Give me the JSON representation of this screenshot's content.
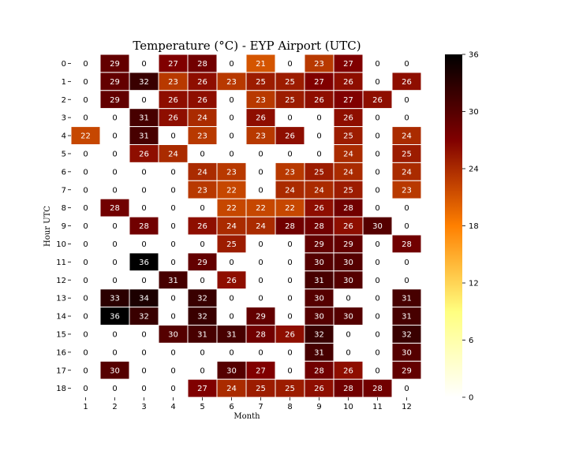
{
  "chart_data": {
    "type": "heatmap",
    "title": "Temperature (°C) - EYP Airport (UTC)",
    "xlabel": "Month",
    "ylabel": "Hour UTC",
    "x_categories": [
      "1",
      "2",
      "3",
      "4",
      "5",
      "6",
      "7",
      "8",
      "9",
      "10",
      "11",
      "12"
    ],
    "y_categories": [
      "0",
      "1",
      "2",
      "3",
      "4",
      "5",
      "6",
      "7",
      "8",
      "9",
      "10",
      "11",
      "12",
      "13",
      "14",
      "15",
      "16",
      "17",
      "18"
    ],
    "values": [
      [
        0,
        29,
        0,
        27,
        28,
        0,
        21,
        0,
        23,
        27,
        0,
        0
      ],
      [
        0,
        29,
        32,
        23,
        26,
        23,
        25,
        25,
        27,
        26,
        0,
        26
      ],
      [
        0,
        29,
        0,
        26,
        26,
        0,
        23,
        25,
        26,
        27,
        26,
        0
      ],
      [
        0,
        0,
        31,
        26,
        24,
        0,
        26,
        0,
        0,
        26,
        0,
        0
      ],
      [
        22,
        0,
        31,
        0,
        23,
        0,
        23,
        26,
        0,
        25,
        0,
        24
      ],
      [
        0,
        0,
        26,
        24,
        0,
        0,
        0,
        0,
        0,
        24,
        0,
        25
      ],
      [
        0,
        0,
        0,
        0,
        24,
        23,
        0,
        23,
        25,
        24,
        0,
        24
      ],
      [
        0,
        0,
        0,
        0,
        23,
        22,
        0,
        24,
        24,
        25,
        0,
        23
      ],
      [
        0,
        28,
        0,
        0,
        0,
        22,
        22,
        22,
        26,
        28,
        0,
        0
      ],
      [
        0,
        0,
        28,
        0,
        26,
        24,
        24,
        28,
        28,
        26,
        30,
        0
      ],
      [
        0,
        0,
        0,
        0,
        0,
        25,
        0,
        0,
        29,
        29,
        0,
        28
      ],
      [
        0,
        0,
        36,
        0,
        29,
        0,
        0,
        0,
        30,
        30,
        0,
        0
      ],
      [
        0,
        0,
        0,
        31,
        0,
        26,
        0,
        0,
        31,
        30,
        0,
        0
      ],
      [
        0,
        33,
        34,
        0,
        32,
        0,
        0,
        0,
        30,
        0,
        0,
        31
      ],
      [
        0,
        36,
        32,
        0,
        32,
        0,
        29,
        0,
        30,
        30,
        0,
        31
      ],
      [
        0,
        0,
        0,
        30,
        31,
        31,
        28,
        26,
        32,
        0,
        0,
        32
      ],
      [
        0,
        0,
        0,
        0,
        0,
        0,
        0,
        0,
        31,
        0,
        0,
        30
      ],
      [
        0,
        30,
        0,
        0,
        0,
        30,
        27,
        0,
        28,
        26,
        0,
        29
      ],
      [
        0,
        0,
        0,
        0,
        27,
        24,
        25,
        25,
        26,
        28,
        28,
        0
      ]
    ],
    "colorscale": "afmhot_r",
    "vmin": 0,
    "vmax": 36,
    "colorbar_ticks": [
      0,
      6,
      12,
      18,
      24,
      30,
      36
    ],
    "annotate": true
  }
}
